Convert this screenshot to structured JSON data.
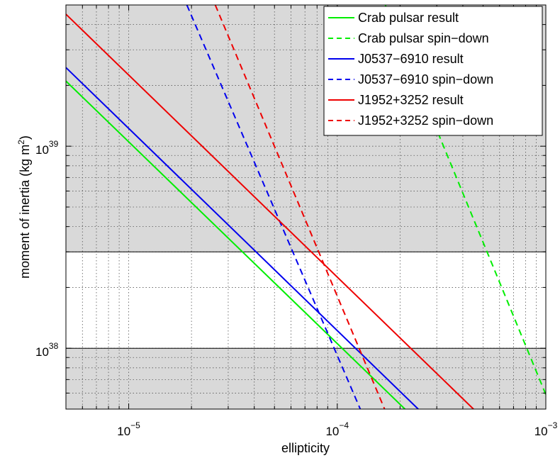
{
  "chart_data": {
    "type": "line",
    "xlabel": "ellipticity",
    "ylabel": "moment of inertia (kg m",
    "ylabel_sup": "2",
    "ylabel_close": ")",
    "xscale": "log",
    "yscale": "log",
    "xlim": [
      5e-06,
      0.001
    ],
    "ylim": [
      5e+37,
      5e+39
    ],
    "x_ticks": [
      {
        "value": 1e-05,
        "base": "10",
        "exp": "−5"
      },
      {
        "value": 0.0001,
        "base": "10",
        "exp": "−4"
      },
      {
        "value": 0.001,
        "base": "10",
        "exp": "−3"
      }
    ],
    "y_ticks": [
      {
        "value": 1e+38,
        "base": "10",
        "exp": "38"
      },
      {
        "value": 1e+39,
        "base": "10",
        "exp": "39"
      }
    ],
    "grid": true,
    "legend_position": "top-right",
    "shaded_regions": [
      {
        "y": [
          5e+37,
          1e+38
        ],
        "color": "#d9d9d9"
      },
      {
        "y": [
          3e+38,
          5e+39
        ],
        "color": "#d9d9d9"
      }
    ],
    "band_lines": [
      1e+38,
      3e+38
    ],
    "series": [
      {
        "name": "Crab pulsar result",
        "color": "#00ee00",
        "style": "solid",
        "points": [
          [
            5e-06,
            2.1e+39
          ],
          [
            0.00024,
            4.4e+37
          ]
        ]
      },
      {
        "name": "Crab pulsar spin−down",
        "color": "#00ee00",
        "style": "dashed",
        "points": [
          [
            0.00017,
            5e+39
          ],
          [
            0.001,
            5.9e+37
          ]
        ]
      },
      {
        "name": "J0537−6910 result",
        "color": "#0000ee",
        "style": "solid",
        "points": [
          [
            5e-06,
            2.45e+39
          ],
          [
            0.00026,
            4.7e+37
          ]
        ]
      },
      {
        "name": "J0537−6910 spin−down",
        "color": "#0000ee",
        "style": "dashed",
        "points": [
          [
            1.9e-05,
            5e+39
          ],
          [
            0.00013,
            4.9e+37
          ]
        ]
      },
      {
        "name": "J1952+3252 result",
        "color": "#ee0000",
        "style": "solid",
        "points": [
          [
            5e-06,
            4.5e+39
          ],
          [
            0.0005,
            4.5e+37
          ]
        ]
      },
      {
        "name": "J1952+3252 spin−down",
        "color": "#ee0000",
        "style": "dashed",
        "points": [
          [
            2.6e-05,
            5e+39
          ],
          [
            0.00017,
            4.9e+37
          ]
        ]
      }
    ]
  }
}
